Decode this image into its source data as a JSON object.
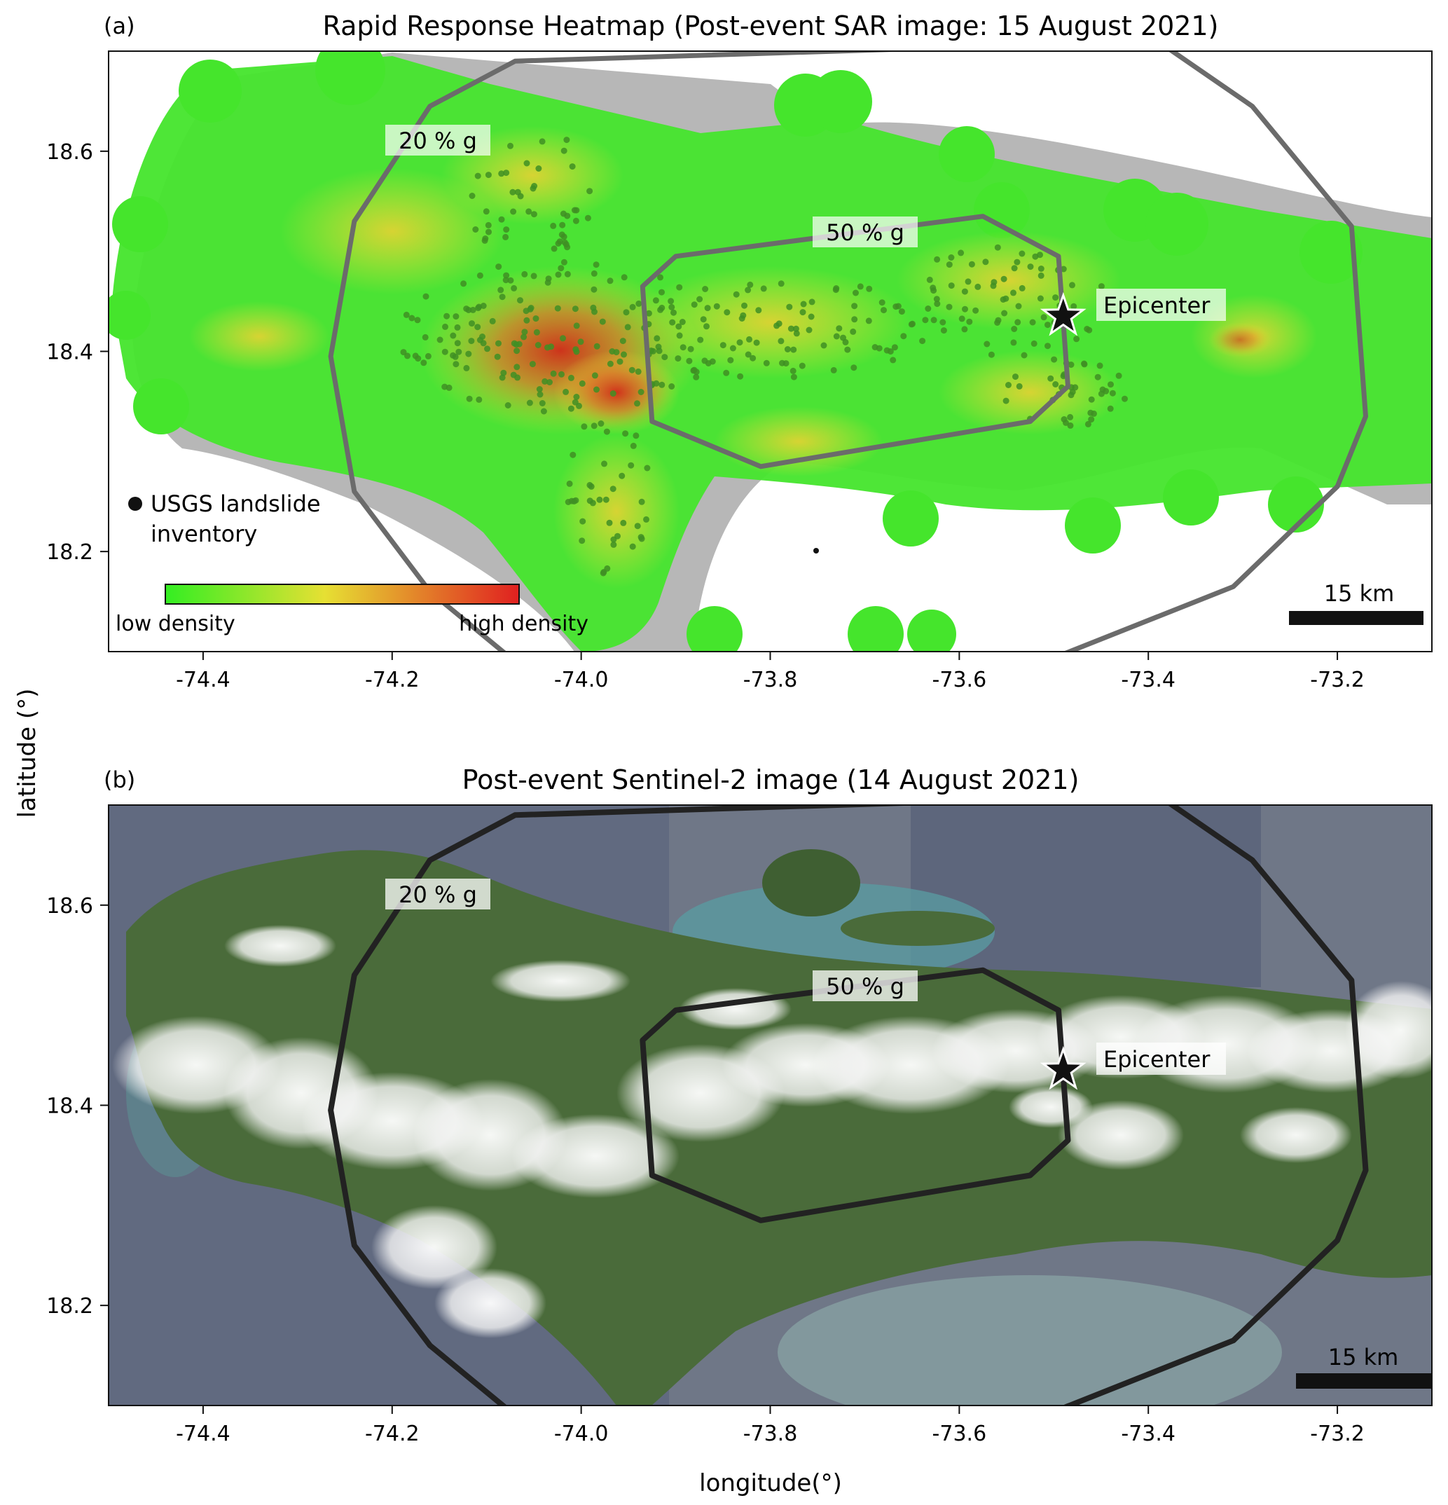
{
  "figure": {
    "ylabel": "latitude (°)",
    "xlabel": "longitude(°)"
  },
  "panel_a": {
    "tag": "(a)",
    "title": "Rapid Response Heatmap (Post-event SAR image: 15 August 2021)",
    "contour_labels": [
      "20 % g",
      "50 % g"
    ],
    "epicenter_label": "Epicenter",
    "legend_points": "USGS landslide",
    "legend_points_line2": "inventory",
    "colorbar_low": "low density",
    "colorbar_high": "high density",
    "scalebar": "15 km",
    "colors": {
      "low": "#33ee22",
      "mid": "#e6e033",
      "high": "#e02020",
      "contour": "#6b6b6b",
      "land": "#b8b8b8"
    }
  },
  "panel_b": {
    "tag": "(b)",
    "title": "Post-event Sentinel-2 image (14 August 2021)",
    "contour_labels": [
      "20 % g",
      "50 % g"
    ],
    "epicenter_label": "Epicenter",
    "scalebar": "15 km",
    "colors": {
      "land": "#4a6b3a",
      "sea": "#6f7787",
      "cloud": "#f2f2f2",
      "contour": "#222222"
    }
  },
  "axes": {
    "xlim": [
      -74.5,
      -73.1
    ],
    "ylim": [
      18.1,
      18.7
    ],
    "xticks": [
      "-74.4",
      "-74.2",
      "-74.0",
      "-73.8",
      "-73.6",
      "-73.4",
      "-73.2"
    ],
    "xtick_values": [
      -74.4,
      -74.2,
      -74.0,
      -73.8,
      -73.6,
      -73.4,
      -73.2
    ],
    "yticks": [
      "18.2",
      "18.4",
      "18.6"
    ],
    "ytick_values": [
      18.2,
      18.4,
      18.6
    ]
  },
  "epicenter": {
    "lon": -73.49,
    "lat": 18.435
  },
  "contours": {
    "g20": [
      [
        -74.07,
        18.69
      ],
      [
        -74.16,
        18.645
      ],
      [
        -74.24,
        18.53
      ],
      [
        -74.265,
        18.395
      ],
      [
        -74.24,
        18.26
      ],
      [
        -74.16,
        18.16
      ],
      [
        -74.07,
        18.09
      ],
      [
        -73.51,
        18.09
      ],
      [
        -73.31,
        18.165
      ],
      [
        -73.2,
        18.265
      ],
      [
        -73.17,
        18.335
      ],
      [
        -73.185,
        18.525
      ],
      [
        -73.29,
        18.645
      ],
      [
        -73.39,
        18.71
      ]
    ],
    "g50": [
      [
        -73.9,
        18.495
      ],
      [
        -73.935,
        18.465
      ],
      [
        -73.925,
        18.33
      ],
      [
        -73.81,
        18.285
      ],
      [
        -73.525,
        18.33
      ],
      [
        -73.485,
        18.365
      ],
      [
        -73.495,
        18.495
      ],
      [
        -73.575,
        18.535
      ]
    ]
  }
}
